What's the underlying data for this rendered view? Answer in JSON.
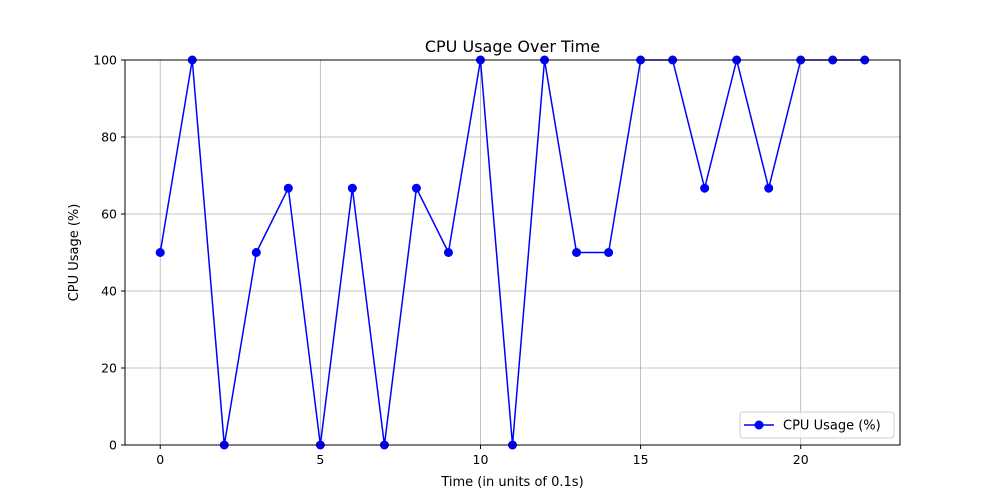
{
  "chart_data": {
    "type": "line",
    "title": "CPU Usage Over Time",
    "xlabel": "Time (in units of 0.1s)",
    "ylabel": "CPU Usage (%)",
    "xlim": [
      -1.1,
      23.1
    ],
    "ylim": [
      0,
      100
    ],
    "xticks": [
      0,
      5,
      10,
      15,
      20
    ],
    "yticks": [
      0,
      20,
      40,
      60,
      80,
      100
    ],
    "grid": true,
    "legend_position": "lower-right",
    "x": [
      0,
      1,
      2,
      3,
      4,
      5,
      6,
      7,
      8,
      9,
      10,
      11,
      12,
      13,
      14,
      15,
      16,
      17,
      18,
      19,
      20,
      21,
      22
    ],
    "series": [
      {
        "name": "CPU Usage (%)",
        "color": "#0000ff",
        "marker": "circle",
        "values": [
          50,
          100,
          0,
          50,
          66.7,
          0,
          66.7,
          0,
          66.7,
          50,
          100,
          0,
          100,
          50,
          50,
          100,
          100,
          66.7,
          100,
          66.7,
          100,
          100,
          100
        ]
      }
    ]
  }
}
